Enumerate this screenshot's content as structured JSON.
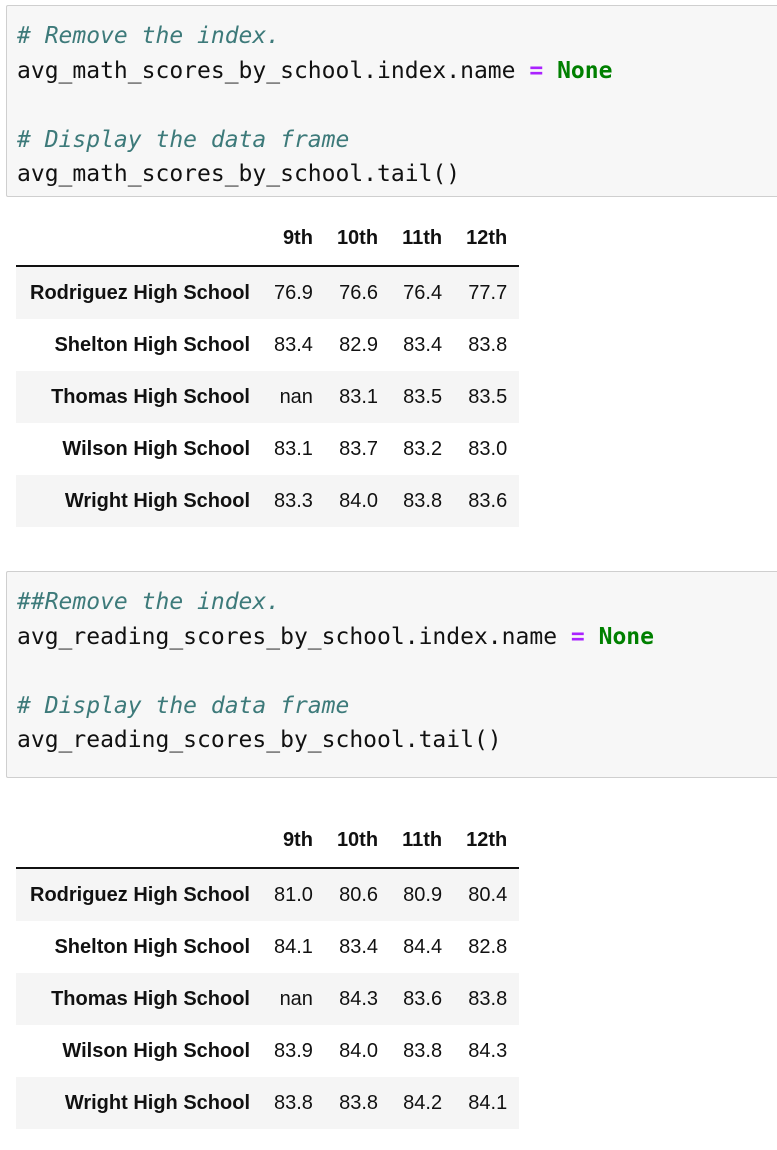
{
  "cells": [
    {
      "code": {
        "line1_comment": "# Remove the index.",
        "line2_code": "avg_math_scores_by_school.index.name ",
        "line2_operator": "=",
        "line2_keyword": "None",
        "line4_comment": "# Display the data frame",
        "line5_code": "avg_math_scores_by_school.tail()"
      },
      "output": {
        "columns": [
          "9th",
          "10th",
          "11th",
          "12th"
        ],
        "rows": [
          {
            "index": "Rodriguez High School",
            "values": [
              "76.9",
              "76.6",
              "76.4",
              "77.7"
            ]
          },
          {
            "index": "Shelton High School",
            "values": [
              "83.4",
              "82.9",
              "83.4",
              "83.8"
            ]
          },
          {
            "index": "Thomas High School",
            "values": [
              "nan",
              "83.1",
              "83.5",
              "83.5"
            ]
          },
          {
            "index": "Wilson High School",
            "values": [
              "83.1",
              "83.7",
              "83.2",
              "83.0"
            ]
          },
          {
            "index": "Wright High School",
            "values": [
              "83.3",
              "84.0",
              "83.8",
              "83.6"
            ]
          }
        ]
      }
    },
    {
      "code": {
        "line1_comment": "##Remove the index.",
        "line2_code": "avg_reading_scores_by_school.index.name ",
        "line2_operator": "=",
        "line2_keyword": "None",
        "line4_comment": "# Display the data frame",
        "line5_code": "avg_reading_scores_by_school.tail()"
      },
      "output": {
        "columns": [
          "9th",
          "10th",
          "11th",
          "12th"
        ],
        "rows": [
          {
            "index": "Rodriguez High School",
            "values": [
              "81.0",
              "80.6",
              "80.9",
              "80.4"
            ]
          },
          {
            "index": "Shelton High School",
            "values": [
              "84.1",
              "83.4",
              "84.4",
              "82.8"
            ]
          },
          {
            "index": "Thomas High School",
            "values": [
              "nan",
              "84.3",
              "83.6",
              "83.8"
            ]
          },
          {
            "index": "Wilson High School",
            "values": [
              "83.9",
              "84.0",
              "83.8",
              "84.3"
            ]
          },
          {
            "index": "Wright High School",
            "values": [
              "83.8",
              "83.8",
              "84.2",
              "84.1"
            ]
          }
        ]
      }
    }
  ]
}
